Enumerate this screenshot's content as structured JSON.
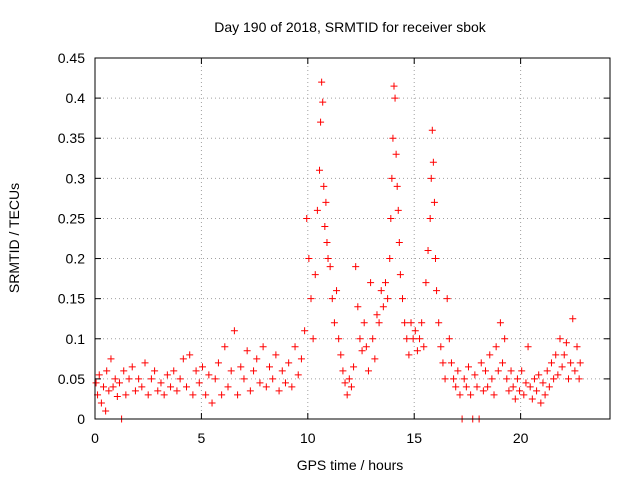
{
  "chart_data": {
    "type": "scatter",
    "title": "Day 190 of 2018, SRMTID for receiver sbok",
    "xlabel": "GPS time / hours",
    "ylabel": "SRMTID / TECUs",
    "xlim": [
      0,
      24.2
    ],
    "ylim": [
      0,
      0.45
    ],
    "x_ticks": [
      0,
      5,
      10,
      15,
      20
    ],
    "x_tick_labels": [
      "0",
      "5",
      "10",
      "15",
      "20"
    ],
    "y_ticks": [
      0,
      0.05,
      0.1,
      0.15,
      0.2,
      0.25,
      0.3,
      0.35,
      0.4,
      0.45
    ],
    "y_tick_labels": [
      "0",
      "0.05",
      "0.1",
      "0.15",
      "0.2",
      "0.25",
      "0.3",
      "0.35",
      "0.4",
      "0.45"
    ],
    "grid": true,
    "marker": "+",
    "color": "#ff0000",
    "series": [
      {
        "name": "SRMTID",
        "points": [
          [
            0.05,
            0.045
          ],
          [
            0.12,
            0.03
          ],
          [
            0.2,
            0.055
          ],
          [
            0.3,
            0.02
          ],
          [
            0.4,
            0.04
          ],
          [
            0.5,
            0.01
          ],
          [
            0.55,
            0.06
          ],
          [
            0.65,
            0.035
          ],
          [
            0.75,
            0.075
          ],
          [
            0.85,
            0.04
          ],
          [
            0.95,
            0.05
          ],
          [
            1.05,
            0.028
          ],
          [
            1.15,
            0.045
          ],
          [
            1.25,
            0.0
          ],
          [
            1.35,
            0.06
          ],
          [
            1.45,
            0.03
          ],
          [
            1.6,
            0.05
          ],
          [
            1.75,
            0.065
          ],
          [
            1.9,
            0.035
          ],
          [
            2.05,
            0.05
          ],
          [
            2.2,
            0.04
          ],
          [
            2.35,
            0.07
          ],
          [
            2.5,
            0.03
          ],
          [
            2.65,
            0.05
          ],
          [
            2.8,
            0.06
          ],
          [
            2.95,
            0.035
          ],
          [
            3.1,
            0.045
          ],
          [
            3.25,
            0.03
          ],
          [
            3.4,
            0.055
          ],
          [
            3.55,
            0.04
          ],
          [
            3.7,
            0.06
          ],
          [
            3.85,
            0.035
          ],
          [
            4.0,
            0.05
          ],
          [
            4.15,
            0.075
          ],
          [
            4.3,
            0.04
          ],
          [
            4.45,
            0.08
          ],
          [
            4.6,
            0.03
          ],
          [
            4.75,
            0.06
          ],
          [
            4.9,
            0.045
          ],
          [
            5.05,
            0.065
          ],
          [
            5.2,
            0.03
          ],
          [
            5.35,
            0.055
          ],
          [
            5.5,
            0.02
          ],
          [
            5.65,
            0.05
          ],
          [
            5.8,
            0.07
          ],
          [
            5.95,
            0.03
          ],
          [
            6.1,
            0.09
          ],
          [
            6.25,
            0.04
          ],
          [
            6.4,
            0.06
          ],
          [
            6.55,
            0.11
          ],
          [
            6.7,
            0.03
          ],
          [
            6.85,
            0.065
          ],
          [
            7.0,
            0.05
          ],
          [
            7.15,
            0.085
          ],
          [
            7.3,
            0.035
          ],
          [
            7.45,
            0.06
          ],
          [
            7.6,
            0.075
          ],
          [
            7.75,
            0.045
          ],
          [
            7.9,
            0.09
          ],
          [
            8.05,
            0.04
          ],
          [
            8.2,
            0.065
          ],
          [
            8.35,
            0.05
          ],
          [
            8.5,
            0.08
          ],
          [
            8.65,
            0.035
          ],
          [
            8.8,
            0.06
          ],
          [
            8.95,
            0.045
          ],
          [
            9.1,
            0.07
          ],
          [
            9.25,
            0.04
          ],
          [
            9.4,
            0.09
          ],
          [
            9.55,
            0.055
          ],
          [
            9.7,
            0.075
          ],
          [
            9.85,
            0.11
          ],
          [
            9.95,
            0.25
          ],
          [
            10.05,
            0.2
          ],
          [
            10.15,
            0.15
          ],
          [
            10.25,
            0.1
          ],
          [
            10.35,
            0.18
          ],
          [
            10.45,
            0.26
          ],
          [
            10.55,
            0.31
          ],
          [
            10.6,
            0.37
          ],
          [
            10.65,
            0.42
          ],
          [
            10.7,
            0.395
          ],
          [
            10.75,
            0.29
          ],
          [
            10.8,
            0.24
          ],
          [
            10.85,
            0.27
          ],
          [
            10.9,
            0.22
          ],
          [
            10.95,
            0.2
          ],
          [
            11.05,
            0.19
          ],
          [
            11.15,
            0.15
          ],
          [
            11.25,
            0.12
          ],
          [
            11.35,
            0.16
          ],
          [
            11.45,
            0.1
          ],
          [
            11.55,
            0.08
          ],
          [
            11.65,
            0.06
          ],
          [
            11.75,
            0.045
          ],
          [
            11.85,
            0.03
          ],
          [
            11.95,
            0.05
          ],
          [
            12.05,
            0.04
          ],
          [
            12.15,
            0.065
          ],
          [
            12.25,
            0.19
          ],
          [
            12.35,
            0.14
          ],
          [
            12.45,
            0.1
          ],
          [
            12.55,
            0.085
          ],
          [
            12.65,
            0.12
          ],
          [
            12.75,
            0.09
          ],
          [
            12.85,
            0.06
          ],
          [
            12.95,
            0.17
          ],
          [
            13.05,
            0.1
          ],
          [
            13.15,
            0.075
          ],
          [
            13.25,
            0.13
          ],
          [
            13.35,
            0.12
          ],
          [
            13.45,
            0.16
          ],
          [
            13.55,
            0.14
          ],
          [
            13.65,
            0.17
          ],
          [
            13.75,
            0.15
          ],
          [
            13.85,
            0.2
          ],
          [
            13.9,
            0.25
          ],
          [
            13.95,
            0.3
          ],
          [
            14.0,
            0.35
          ],
          [
            14.05,
            0.415
          ],
          [
            14.1,
            0.4
          ],
          [
            14.15,
            0.33
          ],
          [
            14.2,
            0.29
          ],
          [
            14.25,
            0.26
          ],
          [
            14.3,
            0.22
          ],
          [
            14.35,
            0.18
          ],
          [
            14.45,
            0.15
          ],
          [
            14.55,
            0.12
          ],
          [
            14.65,
            0.1
          ],
          [
            14.75,
            0.08
          ],
          [
            14.85,
            0.12
          ],
          [
            14.95,
            0.1
          ],
          [
            15.05,
            0.11
          ],
          [
            15.15,
            0.085
          ],
          [
            15.25,
            0.1
          ],
          [
            15.35,
            0.12
          ],
          [
            15.45,
            0.09
          ],
          [
            15.55,
            0.17
          ],
          [
            15.65,
            0.21
          ],
          [
            15.75,
            0.25
          ],
          [
            15.8,
            0.3
          ],
          [
            15.85,
            0.36
          ],
          [
            15.9,
            0.32
          ],
          [
            15.95,
            0.27
          ],
          [
            16.0,
            0.2
          ],
          [
            16.05,
            0.16
          ],
          [
            16.15,
            0.12
          ],
          [
            16.25,
            0.09
          ],
          [
            16.35,
            0.07
          ],
          [
            16.45,
            0.05
          ],
          [
            16.55,
            0.15
          ],
          [
            16.65,
            0.1
          ],
          [
            16.75,
            0.07
          ],
          [
            16.85,
            0.05
          ],
          [
            16.95,
            0.04
          ],
          [
            17.05,
            0.06
          ],
          [
            17.15,
            0.03
          ],
          [
            17.25,
            0.0
          ],
          [
            17.35,
            0.05
          ],
          [
            17.45,
            0.04
          ],
          [
            17.55,
            0.065
          ],
          [
            17.65,
            0.03
          ],
          [
            17.75,
            0.0
          ],
          [
            17.85,
            0.055
          ],
          [
            17.95,
            0.04
          ],
          [
            18.05,
            0.0
          ],
          [
            18.15,
            0.07
          ],
          [
            18.25,
            0.035
          ],
          [
            18.35,
            0.06
          ],
          [
            18.45,
            0.04
          ],
          [
            18.55,
            0.08
          ],
          [
            18.65,
            0.05
          ],
          [
            18.75,
            0.03
          ],
          [
            18.85,
            0.09
          ],
          [
            18.95,
            0.06
          ],
          [
            19.05,
            0.12
          ],
          [
            19.15,
            0.07
          ],
          [
            19.25,
            0.1
          ],
          [
            19.35,
            0.05
          ],
          [
            19.45,
            0.035
          ],
          [
            19.55,
            0.06
          ],
          [
            19.65,
            0.04
          ],
          [
            19.75,
            0.025
          ],
          [
            19.85,
            0.05
          ],
          [
            19.95,
            0.035
          ],
          [
            20.05,
            0.06
          ],
          [
            20.15,
            0.03
          ],
          [
            20.25,
            0.045
          ],
          [
            20.35,
            0.09
          ],
          [
            20.45,
            0.04
          ],
          [
            20.55,
            0.025
          ],
          [
            20.65,
            0.05
          ],
          [
            20.75,
            0.035
          ],
          [
            20.85,
            0.055
          ],
          [
            20.95,
            0.02
          ],
          [
            21.05,
            0.045
          ],
          [
            21.15,
            0.03
          ],
          [
            21.25,
            0.06
          ],
          [
            21.35,
            0.04
          ],
          [
            21.45,
            0.07
          ],
          [
            21.55,
            0.05
          ],
          [
            21.65,
            0.08
          ],
          [
            21.75,
            0.055
          ],
          [
            21.85,
            0.1
          ],
          [
            21.95,
            0.065
          ],
          [
            22.05,
            0.08
          ],
          [
            22.15,
            0.095
          ],
          [
            22.25,
            0.05
          ],
          [
            22.35,
            0.07
          ],
          [
            22.45,
            0.125
          ],
          [
            22.55,
            0.06
          ],
          [
            22.65,
            0.09
          ],
          [
            22.75,
            0.05
          ],
          [
            22.8,
            0.07
          ]
        ]
      }
    ]
  }
}
